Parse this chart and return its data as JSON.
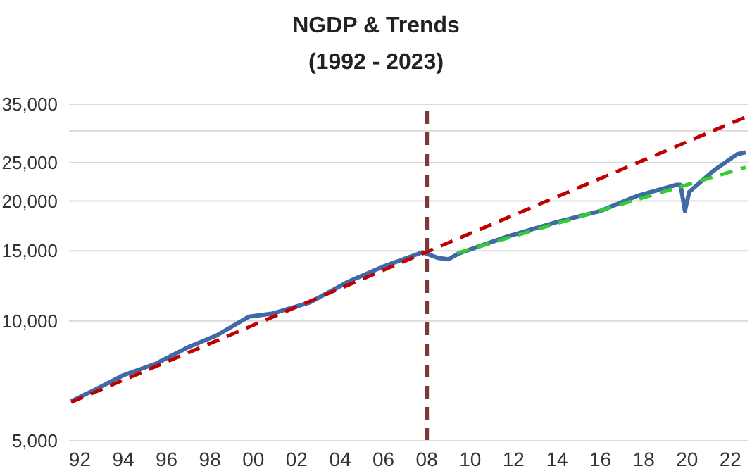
{
  "chart_data": {
    "type": "line",
    "title": "NGDP & Trends",
    "subtitle": "(1992 - 2023)",
    "log": "y",
    "grid": "y",
    "legend": false,
    "xlim": [
      1991.5,
      2022.8
    ],
    "xticks": [
      {
        "value": 1992,
        "label": "92"
      },
      {
        "value": 1994,
        "label": "94"
      },
      {
        "value": 1996,
        "label": "96"
      },
      {
        "value": 1998,
        "label": "98"
      },
      {
        "value": 2000,
        "label": "00"
      },
      {
        "value": 2002,
        "label": "02"
      },
      {
        "value": 2004,
        "label": "04"
      },
      {
        "value": 2006,
        "label": "06"
      },
      {
        "value": 2008,
        "label": "08"
      },
      {
        "value": 2010,
        "label": "10"
      },
      {
        "value": 2012,
        "label": "12"
      },
      {
        "value": 2014,
        "label": "14"
      },
      {
        "value": 2016,
        "label": "16"
      },
      {
        "value": 2018,
        "label": "18"
      },
      {
        "value": 2020,
        "label": "20"
      },
      {
        "value": 2022,
        "label": "22"
      }
    ],
    "ylim": [
      5000,
      35000
    ],
    "yticks": [
      {
        "value": 5000,
        "label": "5,000"
      },
      {
        "value": 10000,
        "label": "10,000"
      },
      {
        "value": 15000,
        "label": "15,000"
      },
      {
        "value": 20000,
        "label": "20,000"
      },
      {
        "value": 25000,
        "label": "25,000"
      },
      {
        "value": 30000,
        "label": null
      },
      {
        "value": 35000,
        "label": "35,000"
      }
    ],
    "series": [
      {
        "color": "#4169a8",
        "line_style": "solid",
        "x": [
          1991.6,
          1992.7,
          1994.0,
          1995.5,
          1997.0,
          1998.3,
          1999.8,
          2000.9,
          2002.6,
          2004.4,
          2005.9,
          2007.8,
          2008.5,
          2009.0,
          2009.5,
          2011.7,
          2013.9,
          2016.0,
          2017.7,
          2019.5,
          2019.7,
          2019.9,
          2020.1,
          2021.2,
          2022.3,
          2022.7
        ],
        "values": [
          6280,
          6720,
          7300,
          7810,
          8590,
          9190,
          10250,
          10440,
          11120,
          12560,
          13630,
          14870,
          14400,
          14280,
          14790,
          16270,
          17650,
          18880,
          20600,
          21950,
          21950,
          18880,
          21080,
          23780,
          26200,
          26500
        ]
      },
      {
        "color": "#c00000",
        "line_style": "dashed",
        "x": [
          1991.6,
          2022.7
        ],
        "values": [
          6250,
          32500
        ]
      },
      {
        "color": "#33cc33",
        "line_style": "dashed",
        "x": [
          2009.4,
          2022.7
        ],
        "values": [
          14800,
          24300
        ]
      }
    ],
    "ref_lines": [
      {
        "axis": "x",
        "value": 2008,
        "color": "#7b3a3a",
        "line_style": "dashed"
      }
    ]
  }
}
